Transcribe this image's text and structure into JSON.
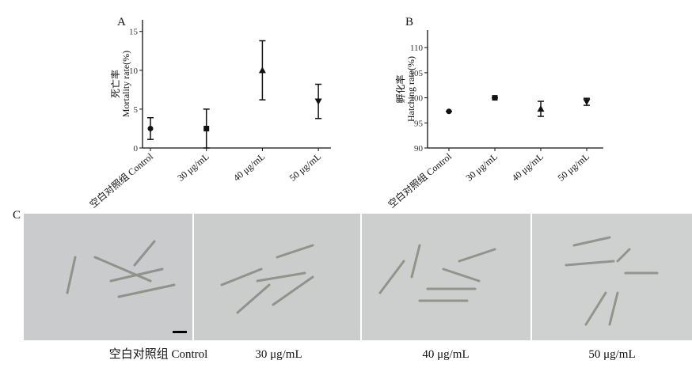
{
  "chart_data": [
    {
      "type": "errorbar",
      "panel": "A",
      "ylabel_cn": "死亡率",
      "ylabel": "Mortality rate(%)",
      "categories": [
        "空白对照组 Control",
        "30 μg/mL",
        "40 μg/mL",
        "50 μg/mL"
      ],
      "values": [
        2.5,
        2.5,
        10,
        6
      ],
      "errors": [
        1.4,
        2.5,
        3.8,
        2.2
      ],
      "markers": [
        "circle",
        "square",
        "triangle",
        "triangle-down"
      ],
      "color": "#111111",
      "ylim": [
        0,
        16.5
      ],
      "yticks": [
        0,
        5,
        10,
        15
      ]
    },
    {
      "type": "errorbar",
      "panel": "B",
      "ylabel_cn": "孵化率",
      "ylabel": "Hatching rate(%)",
      "categories": [
        "空白对照组 Control",
        "30 μg/mL",
        "40 μg/mL",
        "50 μg/mL"
      ],
      "values": [
        97.3,
        100,
        97.8,
        99.2
      ],
      "errors": [
        0,
        0,
        1.5,
        0.7
      ],
      "markers": [
        "circle",
        "square",
        "triangle",
        "triangle-down"
      ],
      "color": "#111111",
      "ylim": [
        90,
        113.5
      ],
      "yticks": [
        90,
        95,
        100,
        105,
        110
      ]
    }
  ],
  "photo_panel": {
    "label": "C",
    "captions": [
      "空白对照组 Control",
      "30 μg/mL",
      "40 μg/mL",
      "50 μg/mL"
    ]
  }
}
